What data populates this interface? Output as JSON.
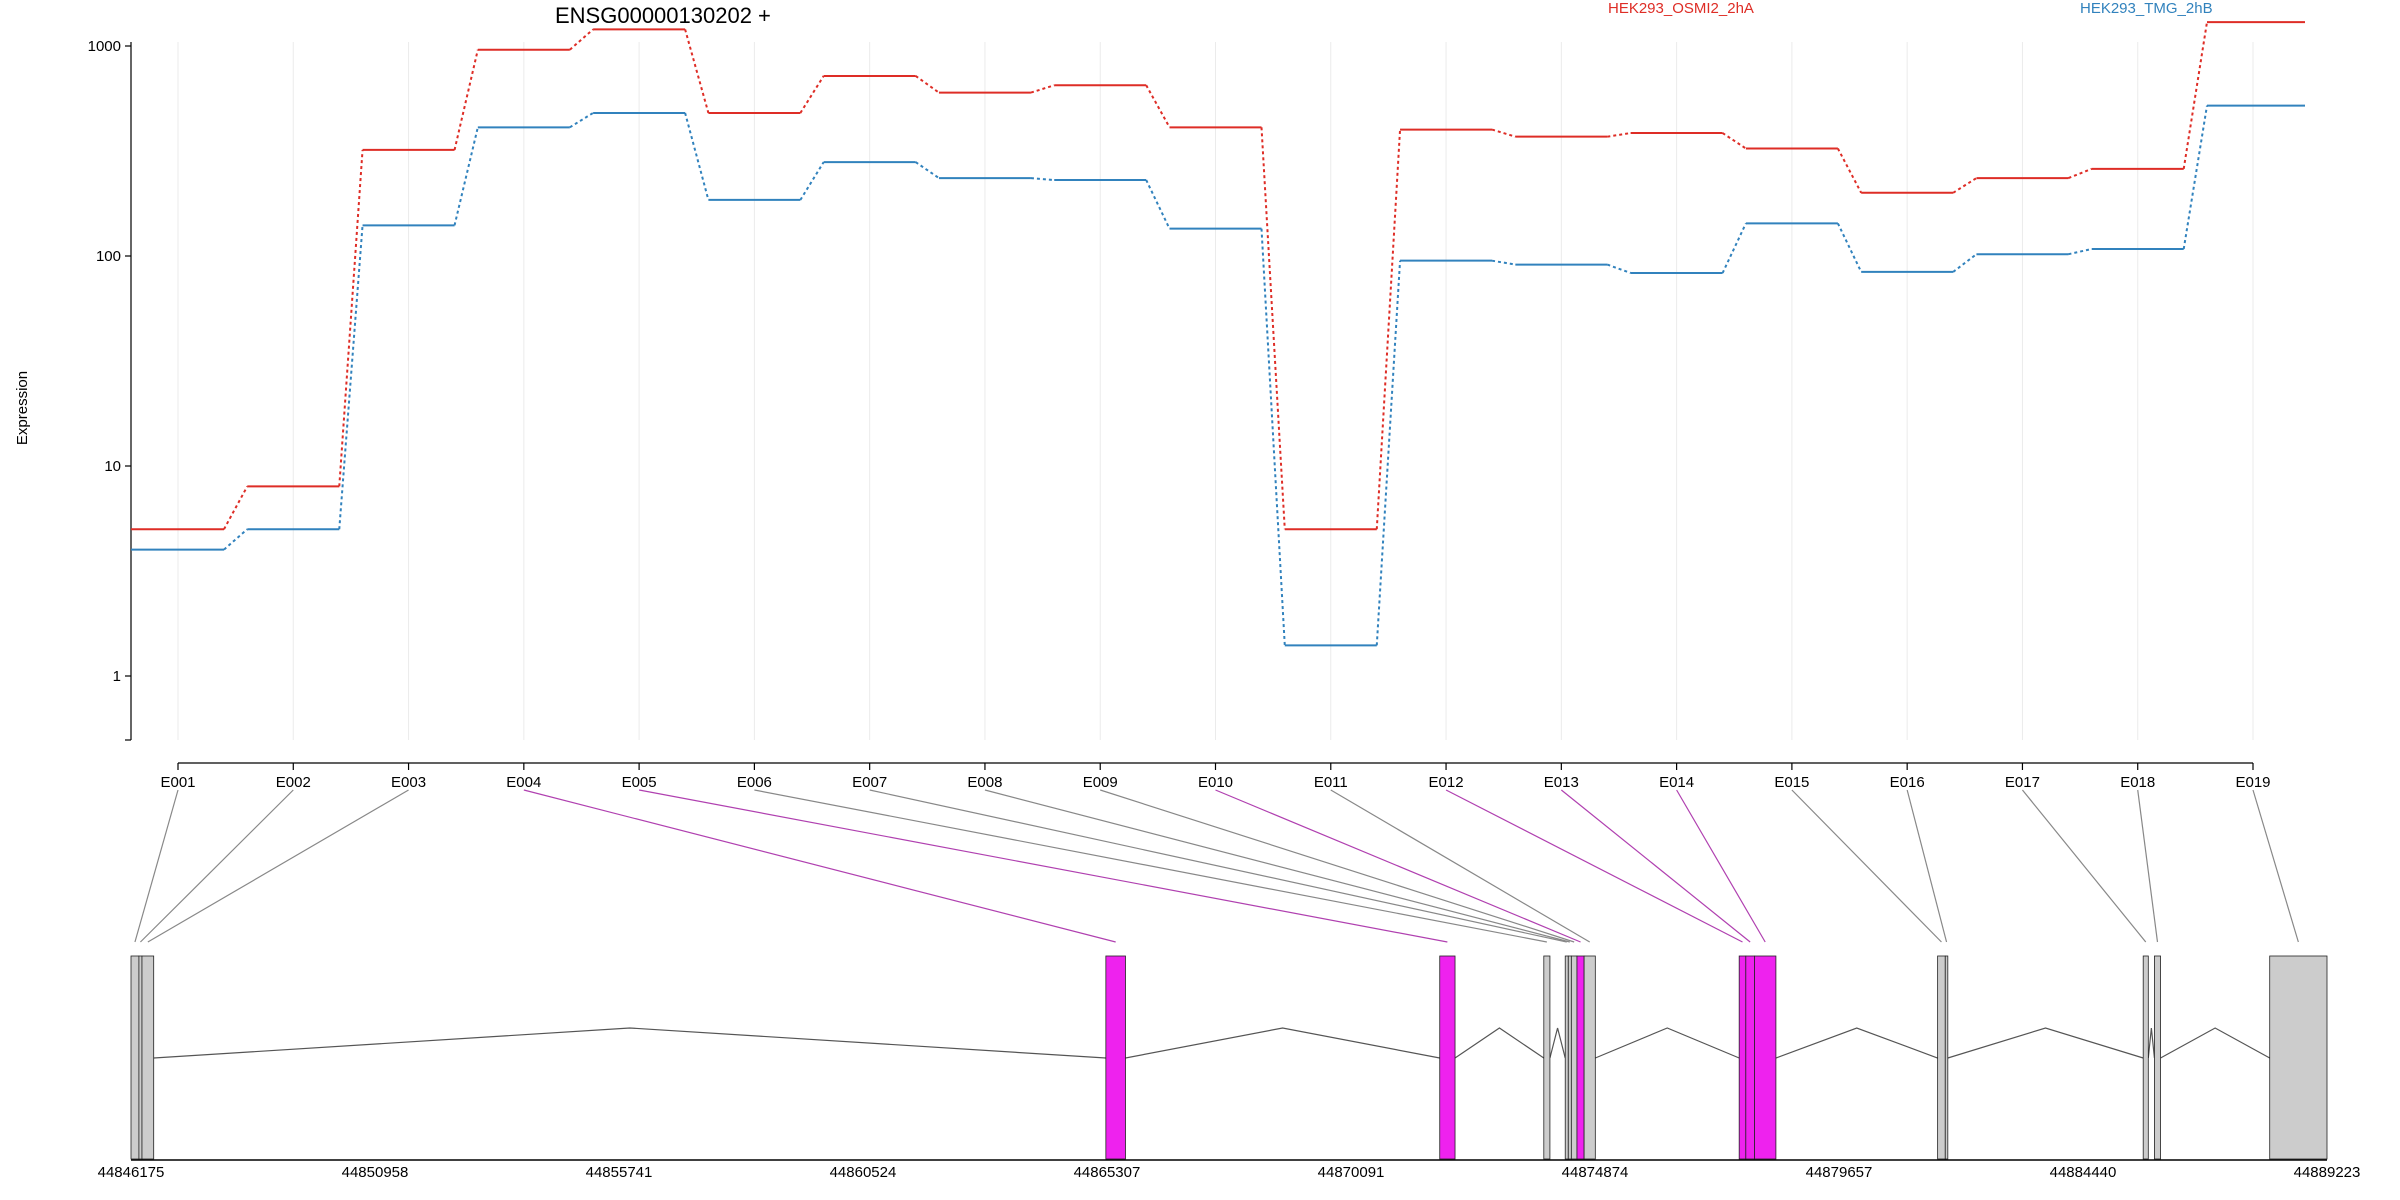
{
  "chart_data": {
    "type": "line",
    "title": "ENSG00000130202 +",
    "ylabel": "Expression",
    "xlabel": "",
    "y_scale": "log",
    "y_ticks": [
      1,
      10,
      100,
      1000
    ],
    "y_tick_labels": [
      "1",
      "10",
      "100",
      "1000"
    ],
    "ylim": [
      0.4,
      1800
    ],
    "grid": "vertical",
    "legend_placement": "top",
    "categories": [
      "E001",
      "E002",
      "E003",
      "E004",
      "E005",
      "E006",
      "E007",
      "E008",
      "E009",
      "E010",
      "E011",
      "E012",
      "E013",
      "E014",
      "E015",
      "E016",
      "E017",
      "E018",
      "E019"
    ],
    "series": [
      {
        "name": "HEK293_OSMI2_2hA",
        "color": "#de2d26",
        "values": [
          5.0,
          8.0,
          320,
          960,
          1200,
          480,
          720,
          600,
          650,
          410,
          5.0,
          400,
          370,
          385,
          325,
          200,
          235,
          260,
          1300
        ]
      },
      {
        "name": "HEK293_TMG_2hB",
        "color": "#3182bd",
        "values": [
          4.0,
          5.0,
          140,
          410,
          480,
          185,
          280,
          235,
          230,
          135,
          1.4,
          95,
          91,
          83,
          143,
          84,
          102,
          108,
          520
        ]
      }
    ],
    "gene_model": {
      "coord_ticks": [
        "44846175",
        "44850958",
        "44855741",
        "44860524",
        "44865307",
        "44870091",
        "44874874",
        "44879657",
        "44884440",
        "44889223"
      ],
      "coord_range": [
        44846175,
        44889223
      ],
      "highlight_color": "#ee22ee",
      "exon_color": "#cccccc",
      "exons": [
        {
          "id": "E001",
          "start": 44846175,
          "end": 44846330,
          "highlight": false
        },
        {
          "id": "E002",
          "start": 44846330,
          "end": 44846390,
          "highlight": false
        },
        {
          "id": "E003",
          "start": 44846390,
          "end": 44846620,
          "highlight": false
        },
        {
          "id": "E004",
          "start": 44865285,
          "end": 44865670,
          "highlight": true
        },
        {
          "id": "E005",
          "start": 44871830,
          "end": 44872130,
          "highlight": true
        },
        {
          "id": "E006",
          "start": 44873870,
          "end": 44873990,
          "highlight": false
        },
        {
          "id": "E007",
          "start": 44874290,
          "end": 44874350,
          "highlight": false
        },
        {
          "id": "E008",
          "start": 44874350,
          "end": 44874410,
          "highlight": false
        },
        {
          "id": "E009",
          "start": 44874410,
          "end": 44874520,
          "highlight": false
        },
        {
          "id": "E010",
          "start": 44874520,
          "end": 44874660,
          "highlight": true
        },
        {
          "id": "E011",
          "start": 44874660,
          "end": 44874880,
          "highlight": false
        },
        {
          "id": "E012",
          "start": 44877700,
          "end": 44877830,
          "highlight": true
        },
        {
          "id": "E013",
          "start": 44877830,
          "end": 44878000,
          "highlight": true
        },
        {
          "id": "E014",
          "start": 44878000,
          "end": 44878420,
          "highlight": true
        },
        {
          "id": "E015",
          "start": 44881590,
          "end": 44881740,
          "highlight": false
        },
        {
          "id": "E016",
          "start": 44881740,
          "end": 44881790,
          "highlight": false
        },
        {
          "id": "E017",
          "start": 44885620,
          "end": 44885720,
          "highlight": false
        },
        {
          "id": "E018",
          "start": 44885840,
          "end": 44885960,
          "highlight": false
        },
        {
          "id": "E019",
          "start": 44888100,
          "end": 44889223,
          "highlight": false
        }
      ]
    }
  }
}
